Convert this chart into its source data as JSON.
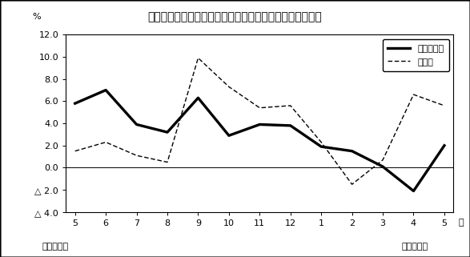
{
  "title": "第２図　所定外労働時間対前年比の推移（規模５人以上）",
  "xlabel_month": "月",
  "ylabel_pct": "%",
  "x_labels": [
    "5",
    "6",
    "7",
    "8",
    "9",
    "10",
    "11",
    "12",
    "1",
    "2",
    "3",
    "4",
    "5"
  ],
  "x_values": [
    0,
    1,
    2,
    3,
    4,
    5,
    6,
    7,
    8,
    9,
    10,
    11,
    12
  ],
  "series1_name": "調査産業計",
  "series1_values": [
    5.8,
    7.0,
    3.9,
    3.2,
    6.3,
    2.9,
    3.9,
    3.8,
    1.9,
    1.5,
    0.1,
    -2.1,
    2.0
  ],
  "series2_name": "製造業",
  "series2_values": [
    1.5,
    2.3,
    1.1,
    0.5,
    9.9,
    7.3,
    5.4,
    5.6,
    2.3,
    -1.5,
    0.7,
    6.6,
    5.6
  ],
  "ylim": [
    -4.0,
    12.0
  ],
  "yticks": [
    -4.0,
    -2.0,
    0.0,
    2.0,
    4.0,
    6.0,
    8.0,
    10.0,
    12.0
  ],
  "heisei18": "平成１８年",
  "heisei19": "平成１９年",
  "bg_color": "#ffffff",
  "plot_bg_color": "#ffffff",
  "line1_color": "#000000",
  "line2_color": "#000000"
}
